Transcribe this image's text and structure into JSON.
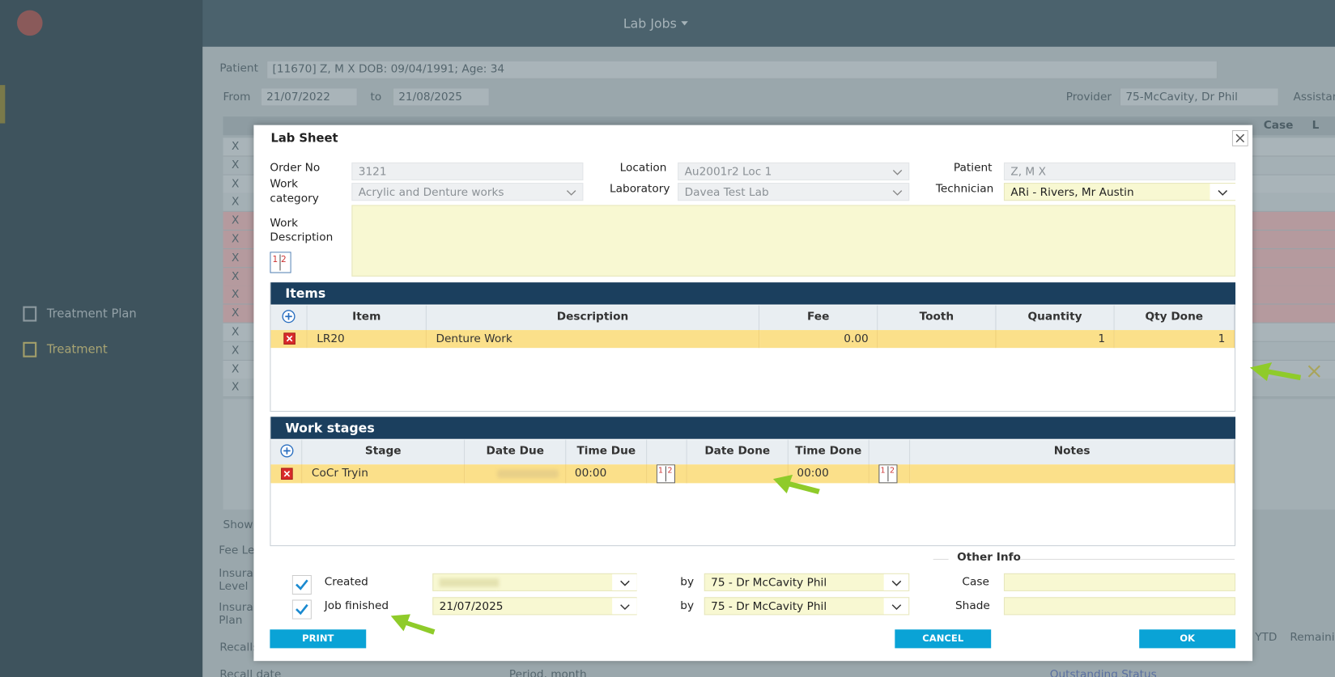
{
  "app": {
    "sidebar": [
      "Treatment Plan",
      "Treatment"
    ],
    "toolbar_menu": "Lab Jobs"
  },
  "background": {
    "patient_label": "Patient",
    "patient": "[11670] Z, M X DOB: 09/04/1991; Age: 34",
    "from_label": "From",
    "from": "21/07/2022",
    "to_label": "to",
    "to": "21/08/2025",
    "provider_label": "Provider",
    "provider": "75-McCavity, Dr Phil",
    "assistant_label": "Assistan",
    "columns": [
      "Case",
      "L"
    ],
    "row_marks": [
      "X",
      "X",
      "X",
      "X",
      "X",
      "X",
      "X",
      "X",
      "X",
      "X",
      "X",
      "X",
      "X",
      "X"
    ],
    "side_labels": [
      "Show",
      "Fee Lev",
      "Insuran Level",
      "Insuran Plan",
      "Recalls",
      "Recall date",
      "Period, month"
    ],
    "right_labels": [
      "YTD",
      "Remainin",
      "Outstanding Status"
    ]
  },
  "dialog": {
    "title": "Lab Sheet",
    "fields": {
      "order_no": {
        "label": "Order No",
        "value": "3121"
      },
      "work_category": {
        "label": "Work category",
        "value": "Acrylic and Denture works"
      },
      "location": {
        "label": "Location",
        "value": "Au2001r2 Loc 1"
      },
      "laboratory": {
        "label": "Laboratory",
        "value": "Davea Test Lab"
      },
      "patient": {
        "label": "Patient",
        "value": "Z, M X"
      },
      "technician": {
        "label": "Technician",
        "value": "ARi - Rivers, Mr Austin"
      },
      "work_description": {
        "label": "Work Description"
      }
    },
    "items": {
      "title": "Items",
      "columns": [
        "Item",
        "Description",
        "Fee",
        "Tooth",
        "Quantity",
        "Qty Done"
      ],
      "rows": [
        {
          "item": "LR20",
          "description": "Denture Work",
          "fee": "0.00",
          "quantity": "1",
          "qty_done": "1"
        }
      ]
    },
    "stages": {
      "title": "Work stages",
      "columns": [
        "Stage",
        "Date Due",
        "Time Due",
        "Date Done",
        "Time Done",
        "Notes"
      ],
      "rows": [
        {
          "stage": "CoCr Tryin",
          "time_due": "00:00",
          "time_done": "00:00"
        }
      ]
    },
    "other_info": {
      "title": "Other Info",
      "created_label": "Created",
      "created_by": "75 - Dr McCavity Phil",
      "job_finished_label": "Job finished",
      "job_finished_date": "21/07/2025",
      "finished_by": "75 - Dr McCavity Phil",
      "by_label": "by",
      "case_label": "Case",
      "shade_label": "Shade"
    },
    "buttons": {
      "print": "PRINT",
      "cancel": "CANCEL",
      "ok": "OK"
    }
  }
}
